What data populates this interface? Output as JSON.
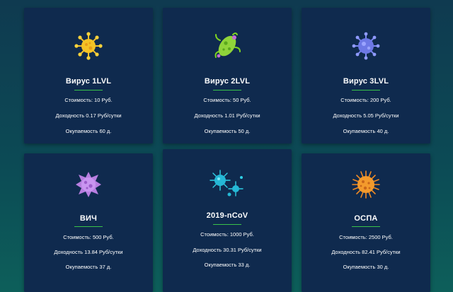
{
  "cards": [
    {
      "name": "Вирус 1LVL",
      "price": "Стоимость: 10 Руб.",
      "income": "Доходность 0.17 Руб/сутки",
      "payback": "Окупаемость 60 д.",
      "icon": "yellow-virus-icon"
    },
    {
      "name": "Вирус 2LVL",
      "price": "Стоимость: 50 Руб.",
      "income": "Доходность 1.01 Руб/сутки",
      "payback": "Окупаемость 50 д.",
      "icon": "green-bacteria-icon"
    },
    {
      "name": "Вирус 3LVL",
      "price": "Стоимость: 200 Руб.",
      "income": "Доходность 5.05 Руб/сутки",
      "payback": "Окупаемость 40 д.",
      "icon": "blue-virus-icon"
    },
    {
      "name": "ВИЧ",
      "price": "Стоимость: 500 Руб.",
      "income": "Доходность 13.84 Руб/сутки",
      "payback": "Окупаемость 37 д.",
      "icon": "purple-virus-icon"
    },
    {
      "name": "2019-nCoV",
      "price": "Стоимость: 1000 Руб.",
      "income": "Доходность 30.31 Руб/сутки",
      "payback": "Окупаемость 33 д.",
      "icon": "cyan-coronavirus-icon"
    },
    {
      "name": "ОСПА",
      "price": "Стоимость: 2500 Руб.",
      "income": "Доходность 82.41 Руб/сутки",
      "payback": "Окупаемость 30 д.",
      "icon": "orange-virus-icon"
    }
  ],
  "colors": {
    "card_bg": "#0f2a4e",
    "underline": "#39c24a"
  }
}
